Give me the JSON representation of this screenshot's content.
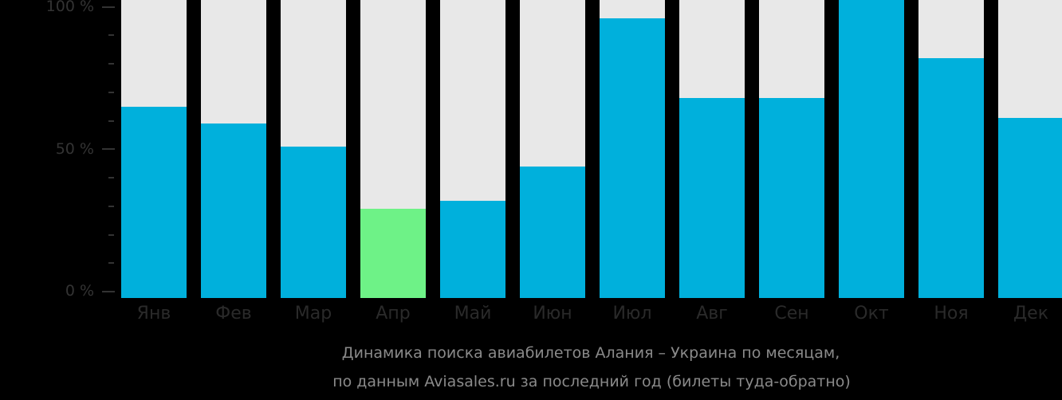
{
  "chart_data": {
    "type": "bar",
    "title": "Динамика поиска авиабилетов Алания – Украина по месяцам,",
    "subtitle": "по данным Aviasales.ru за последний год (билеты туда-обратно)",
    "xlabel": "",
    "ylabel": "",
    "ylim": [
      0,
      100
    ],
    "yticks": [
      "0 %",
      "50 %",
      "100 %"
    ],
    "grid": false,
    "legend": null,
    "categories": [
      "Янв",
      "Фев",
      "Мар",
      "Апр",
      "Май",
      "Июн",
      "Июл",
      "Авг",
      "Сен",
      "Окт",
      "Ноя",
      "Дек"
    ],
    "values": [
      65,
      59,
      51,
      29,
      32,
      44,
      96,
      68,
      68,
      100,
      82,
      61
    ],
    "highlight_index": 3,
    "colors": {
      "bar": "#00b0dc",
      "highlight": "#6ef287",
      "background_track": "#e8e8e8",
      "page_background": "#000000",
      "axis_text": "#333333",
      "caption_text": "#8a8a8a"
    }
  },
  "axis": {
    "y_labels": {
      "top": "100 %",
      "mid": "50 %",
      "bottom": "0 %"
    }
  },
  "caption": {
    "line1": "Динамика поиска авиабилетов Алания – Украина по месяцам,",
    "line2": "по данным Aviasales.ru за последний год (билеты туда-обратно)"
  }
}
